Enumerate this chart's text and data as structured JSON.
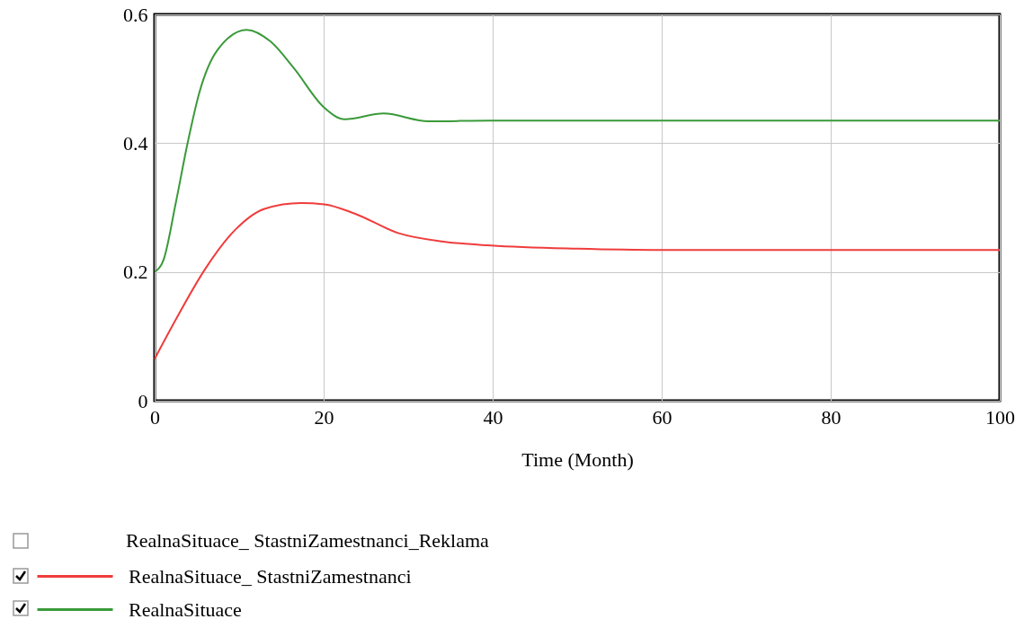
{
  "chart_data": {
    "type": "line",
    "xlabel": "Time (Month)",
    "xlim": [
      0,
      100
    ],
    "ylim": [
      0,
      0.6
    ],
    "xticks": [
      0,
      20,
      40,
      60,
      80,
      100
    ],
    "yticks": [
      0,
      0.2,
      0.4,
      0.6
    ],
    "grid": true,
    "legend": "bottom",
    "annotations": [
      "RealnaSituace_ StastniZamestnanci_Reklama"
    ],
    "series": [
      {
        "name": "RealnaSituace_ StastniZamestnanci",
        "color": "#f03c3c",
        "x": [
          0,
          2.5,
          6,
          9.5,
          13,
          17.3,
          20.1,
          23.6,
          28.9,
          34.2,
          39.8,
          50,
          60,
          80,
          100
        ],
        "values": [
          0.065,
          0.126,
          0.205,
          0.265,
          0.298,
          0.307,
          0.305,
          0.291,
          0.26,
          0.247,
          0.241,
          0.236,
          0.234,
          0.234,
          0.234
        ]
      },
      {
        "name": "RealnaSituace",
        "color": "#3a9a3a",
        "x": [
          0,
          1.06,
          2.5,
          3.9,
          5.3,
          7.4,
          10.9,
          13.7,
          16.5,
          20,
          22.5,
          27.1,
          32.4,
          39.8,
          60,
          80,
          100
        ],
        "values": [
          0.2,
          0.219,
          0.307,
          0.4,
          0.479,
          0.544,
          0.576,
          0.558,
          0.516,
          0.456,
          0.437,
          0.446,
          0.434,
          0.435,
          0.435,
          0.435,
          0.435
        ]
      }
    ]
  }
}
